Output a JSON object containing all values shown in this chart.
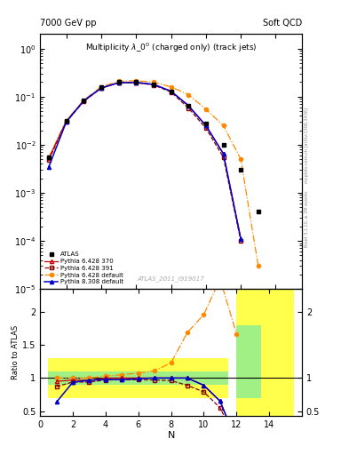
{
  "title_top_left": "7000 GeV pp",
  "title_top_right": "Soft QCD",
  "plot_title": "Multiplicity $\\lambda\\_0^0$ (charged only) (track jets)",
  "watermark": "ATLAS_2011_I919017",
  "right_label_top": "Rivet 3.1.10, ≥ 2M events",
  "right_label_bot": "[arXiv:1306.3436]",
  "mcplots_label": "mcplots.cern.ch",
  "xlabel": "N",
  "ylabel_ratio": "Ratio to ATLAS",
  "N_atlas": [
    1,
    2,
    3,
    4,
    5,
    6,
    7,
    8,
    9,
    10,
    11,
    12,
    13
  ],
  "atlas_y": [
    0.0055,
    0.032,
    0.085,
    0.155,
    0.2,
    0.2,
    0.18,
    0.13,
    0.065,
    0.028,
    0.01,
    0.003,
    0.0004
  ],
  "N_py6_370": [
    1,
    2,
    3,
    4,
    5,
    6,
    7,
    8,
    9,
    10,
    11,
    12
  ],
  "py6_370_y": [
    0.0052,
    0.031,
    0.082,
    0.15,
    0.195,
    0.198,
    0.18,
    0.13,
    0.065,
    0.025,
    0.0065,
    0.00011
  ],
  "N_py6_391": [
    1,
    2,
    3,
    4,
    5,
    6,
    7,
    8,
    9,
    10,
    11,
    12
  ],
  "py6_391_y": [
    0.0048,
    0.03,
    0.08,
    0.15,
    0.195,
    0.195,
    0.175,
    0.125,
    0.058,
    0.022,
    0.0055,
    0.0001
  ],
  "N_py6_def": [
    1,
    2,
    3,
    4,
    5,
    6,
    7,
    8,
    9,
    10,
    11,
    12,
    13
  ],
  "py6_def_y": [
    0.0055,
    0.032,
    0.085,
    0.16,
    0.21,
    0.215,
    0.2,
    0.16,
    0.11,
    0.055,
    0.025,
    0.005,
    3e-05
  ],
  "N_py8_def": [
    1,
    2,
    3,
    4,
    5,
    6,
    7,
    8,
    9,
    10,
    11,
    12
  ],
  "py8_def_y": [
    0.0035,
    0.03,
    0.082,
    0.152,
    0.195,
    0.198,
    0.18,
    0.13,
    0.065,
    0.025,
    0.0065,
    0.00011
  ],
  "rN": [
    1,
    2,
    3,
    4,
    5,
    6,
    7,
    8,
    9,
    10,
    11,
    12
  ],
  "r370": [
    0.95,
    0.97,
    0.965,
    1.0,
    1.0,
    1.0,
    1.0,
    1.0,
    1.0,
    0.89,
    0.65,
    0.037
  ],
  "r391": [
    0.87,
    0.94,
    0.94,
    0.97,
    0.975,
    0.975,
    0.97,
    0.96,
    0.89,
    0.79,
    0.55,
    0.033
  ],
  "rdef": [
    1.0,
    1.0,
    1.0,
    1.03,
    1.05,
    1.075,
    1.11,
    1.23,
    1.69,
    1.96,
    2.5,
    1.67
  ],
  "rp8": [
    0.636,
    0.937,
    0.965,
    0.98,
    0.975,
    0.99,
    1.0,
    1.0,
    1.0,
    0.89,
    0.65,
    0.037
  ],
  "color_atlas": "black",
  "color_py6_370": "#cc0000",
  "color_py6_391": "#880000",
  "color_py6_def": "#ff8800",
  "color_py8_def": "#0000cc",
  "ylim_main": [
    1e-05,
    2.0
  ],
  "ylim_ratio": [
    0.42,
    2.35
  ],
  "xlim_main": [
    0.5,
    15.5
  ],
  "xlim_ratio": [
    0.0,
    16.0
  ]
}
